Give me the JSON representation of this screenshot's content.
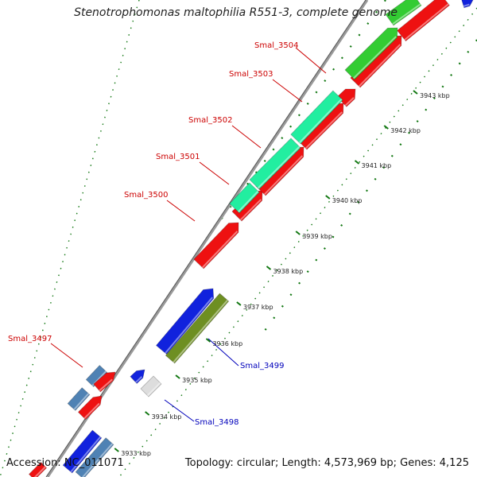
{
  "title": "Stenotrophomonas maltophilia R551-3, complete genome",
  "footer": {
    "accession": "Accession: NC_011071",
    "summary": "Topology: circular; Length: 4,573,969 bp; Genes: 4,125"
  },
  "colors": {
    "red": "#ee1111",
    "green": "#33cc33",
    "aqua": "#22eea0",
    "blue": "#1122dd",
    "olive": "#6e8f22",
    "steel": "#4f82b4",
    "silver": "#dddddd",
    "backbone": "#999999",
    "label_red": "#cc0000",
    "label_blue": "#0000bb",
    "dots": "#117711"
  },
  "gene_labels": [
    {
      "text": "Smal_3504",
      "color": "label_red"
    },
    {
      "text": "Smal_3503",
      "color": "label_red"
    },
    {
      "text": "Smal_3502",
      "color": "label_red"
    },
    {
      "text": "Smal_3501",
      "color": "label_red"
    },
    {
      "text": "Smal_3500",
      "color": "label_red"
    },
    {
      "text": "Smal_3497",
      "color": "label_red"
    },
    {
      "text": "Smal_3499",
      "color": "label_blue"
    },
    {
      "text": "Smal_3498",
      "color": "label_blue"
    }
  ],
  "ticks": [
    "3943 kbp",
    "3942 kbp",
    "3941 kbp",
    "3940 kbp",
    "3939 kbp",
    "3938 kbp",
    "3937 kbp",
    "3936 kbp",
    "3935 kbp",
    "3934 kbp",
    "3933 kbp"
  ]
}
